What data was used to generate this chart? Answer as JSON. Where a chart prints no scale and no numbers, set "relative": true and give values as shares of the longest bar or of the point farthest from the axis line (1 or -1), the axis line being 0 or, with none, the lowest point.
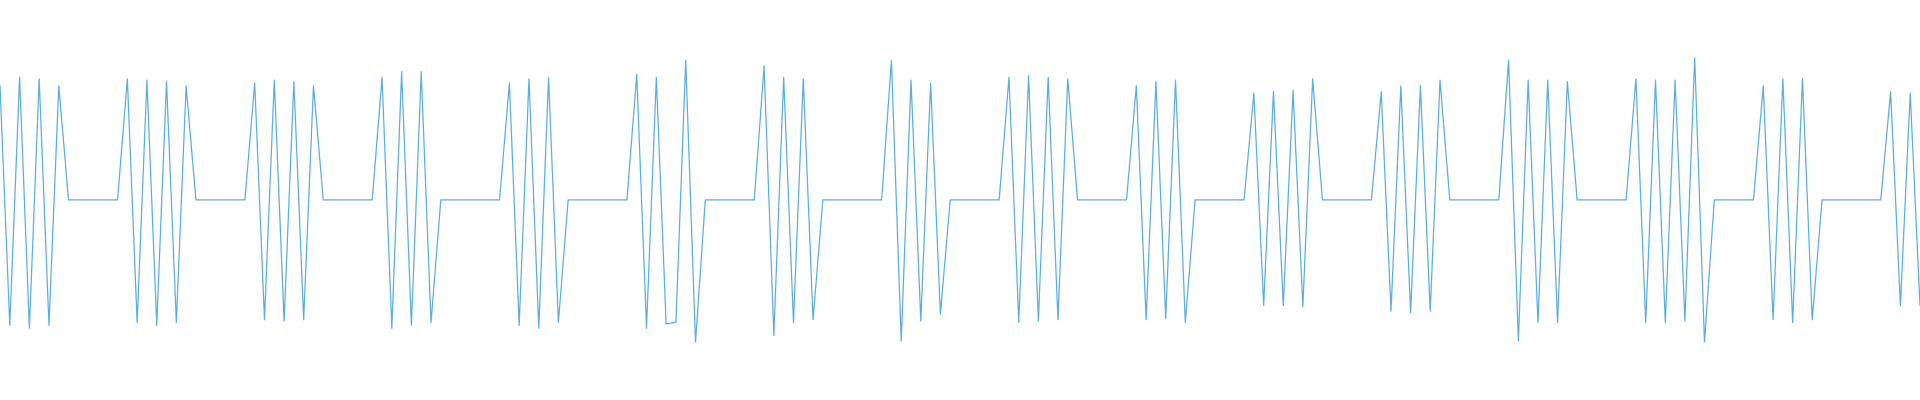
{
  "chart_data": {
    "type": "line",
    "relative": true,
    "categories": [
      null,
      null,
      null,
      null,
      null,
      null,
      null,
      null,
      null,
      null,
      null,
      null,
      null,
      null,
      null,
      null,
      null,
      null,
      null,
      null,
      null,
      null,
      null,
      null,
      null,
      null,
      null,
      null,
      null,
      null,
      null,
      null,
      null,
      null,
      null,
      null,
      null,
      null,
      null,
      null,
      null,
      null,
      null,
      null,
      null,
      null,
      null,
      null,
      null,
      null,
      null,
      null,
      null,
      null,
      null,
      null,
      null,
      null,
      null,
      null,
      null,
      null,
      null,
      null,
      null,
      null,
      null,
      null,
      null,
      null,
      null,
      null,
      null,
      null,
      null,
      null,
      null,
      null,
      null,
      null,
      null,
      null,
      null,
      null,
      null,
      null,
      null,
      null,
      null,
      null,
      null,
      null,
      null,
      null,
      null,
      null,
      null,
      null,
      null,
      null,
      null,
      null,
      null,
      null,
      null,
      null,
      null,
      null,
      null,
      null,
      null,
      null,
      null,
      null,
      null,
      null,
      null,
      null,
      null,
      null,
      null,
      null,
      null,
      null,
      null,
      null,
      null,
      null,
      null,
      null,
      null,
      null,
      null,
      null,
      null,
      null,
      null,
      null,
      null,
      null,
      null,
      null,
      null,
      null,
      null,
      null,
      null,
      null,
      null,
      null,
      null,
      null,
      null,
      null,
      null,
      null,
      null,
      null,
      null,
      null,
      null,
      null,
      null,
      null,
      null,
      null,
      null,
      null,
      null,
      null,
      null,
      null,
      null,
      null,
      null,
      null,
      null,
      null,
      null,
      null,
      null,
      null,
      null,
      null,
      null,
      null,
      null,
      null,
      null,
      null,
      null,
      null,
      null,
      null,
      null,
      null,
      null
    ],
    "series": [
      {
        "color": "#5dade2",
        "values": [
          0.9,
          0.06,
          0.93,
          0.05,
          0.925,
          0.06,
          0.9,
          0.5,
          0.5,
          0.5,
          0.5,
          0.5,
          0.5,
          0.925,
          0.07,
          0.92,
          0.06,
          0.915,
          0.07,
          0.9,
          0.5,
          0.5,
          0.5,
          0.5,
          0.5,
          0.5,
          0.91,
          0.08,
          0.92,
          0.075,
          0.915,
          0.08,
          0.9,
          0.5,
          0.5,
          0.5,
          0.5,
          0.5,
          0.5,
          0.93,
          0.05,
          0.95,
          0.06,
          0.95,
          0.07,
          0.5,
          0.5,
          0.5,
          0.5,
          0.5,
          0.5,
          0.5,
          0.91,
          0.06,
          0.925,
          0.05,
          0.93,
          0.07,
          0.5,
          0.5,
          0.5,
          0.5,
          0.5,
          0.5,
          0.5,
          0.94,
          0.05,
          0.93,
          0.065,
          0.07,
          0.99,
          0,
          0.5,
          0.5,
          0.5,
          0.5,
          0.5,
          0.5,
          0.97,
          0.025,
          0.93,
          0.07,
          0.925,
          0.08,
          0.5,
          0.5,
          0.5,
          0.5,
          0.5,
          0.5,
          0.5,
          0.99,
          0.005,
          0.92,
          0.075,
          0.91,
          0.1,
          0.5,
          0.5,
          0.5,
          0.5,
          0.5,
          0.5,
          0.93,
          0.07,
          0.935,
          0.075,
          0.93,
          0.08,
          0.925,
          0.5,
          0.5,
          0.5,
          0.5,
          0.5,
          0.5,
          0.9,
          0.08,
          0.915,
          0.085,
          0.92,
          0.07,
          0.5,
          0.5,
          0.5,
          0.5,
          0.5,
          0.5,
          0.875,
          0.13,
          0.88,
          0.13,
          0.885,
          0.125,
          0.925,
          0.5,
          0.5,
          0.5,
          0.5,
          0.5,
          0.5,
          0.88,
          0.11,
          0.9,
          0.105,
          0.9,
          0.11,
          0.92,
          0.5,
          0.5,
          0.5,
          0.5,
          0.5,
          0.5,
          0.99,
          0.005,
          0.92,
          0.07,
          0.92,
          0.07,
          0.915,
          0.5,
          0.5,
          0.5,
          0.5,
          0.5,
          0.5,
          0.925,
          0.07,
          0.92,
          0.07,
          0.92,
          0.075,
          1,
          0,
          0.5,
          0.5,
          0.5,
          0.5,
          0.5,
          0.9,
          0.08,
          0.925,
          0.07,
          0.925,
          0.08,
          0.5,
          0.5,
          0.5,
          0.5,
          0.5,
          0.5,
          0.5,
          0.88,
          0.13,
          0.875,
          0.13
        ]
      }
    ]
  }
}
